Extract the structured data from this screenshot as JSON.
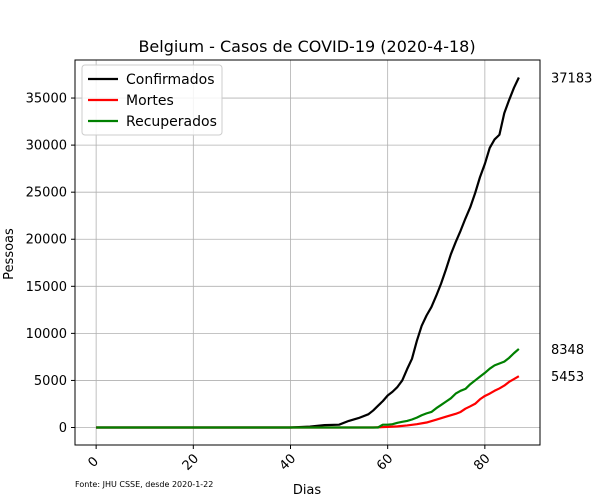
{
  "chart_data": {
    "type": "line",
    "title": "Belgium - Casos de COVID-19 (2020-4-18)",
    "xlabel": "Dias",
    "ylabel": "Pessoas",
    "xlim": [
      -4.35,
      91.35
    ],
    "ylim": [
      -1859,
      39042
    ],
    "xticks": [
      0,
      20,
      40,
      60,
      80
    ],
    "yticks": [
      0,
      5000,
      10000,
      15000,
      20000,
      25000,
      30000,
      35000
    ],
    "grid": true,
    "legend_position": "top-left",
    "source_note": "Fonte: JHU CSSE, desde 2020-1-22",
    "series": [
      {
        "name": "Confirmados",
        "color": "#000000",
        "end_label": "37183",
        "points": [
          [
            0,
            0
          ],
          [
            40,
            0
          ],
          [
            44,
            100
          ],
          [
            47,
            250
          ],
          [
            50,
            300
          ],
          [
            52,
            700
          ],
          [
            54,
            1000
          ],
          [
            56,
            1400
          ],
          [
            57,
            1800
          ],
          [
            58,
            2300
          ],
          [
            59,
            2800
          ],
          [
            60,
            3400
          ],
          [
            61,
            3800
          ],
          [
            62,
            4300
          ],
          [
            63,
            5000
          ],
          [
            64,
            6200
          ],
          [
            65,
            7300
          ],
          [
            66,
            9200
          ],
          [
            67,
            10800
          ],
          [
            68,
            11900
          ],
          [
            69,
            12800
          ],
          [
            70,
            14000
          ],
          [
            71,
            15300
          ],
          [
            72,
            16800
          ],
          [
            73,
            18400
          ],
          [
            74,
            19700
          ],
          [
            75,
            20900
          ],
          [
            76,
            22200
          ],
          [
            77,
            23400
          ],
          [
            78,
            24900
          ],
          [
            79,
            26600
          ],
          [
            80,
            28000
          ],
          [
            81,
            29700
          ],
          [
            82,
            30600
          ],
          [
            83,
            31100
          ],
          [
            84,
            33400
          ],
          [
            85,
            34800
          ],
          [
            86,
            36100
          ],
          [
            87,
            37183
          ]
        ]
      },
      {
        "name": "Mortes",
        "color": "#ff0000",
        "end_label": "5453",
        "points": [
          [
            0,
            0
          ],
          [
            57,
            0
          ],
          [
            60,
            70
          ],
          [
            62,
            120
          ],
          [
            64,
            220
          ],
          [
            66,
            350
          ],
          [
            68,
            530
          ],
          [
            70,
            830
          ],
          [
            72,
            1150
          ],
          [
            74,
            1450
          ],
          [
            75,
            1650
          ],
          [
            76,
            2000
          ],
          [
            77,
            2250
          ],
          [
            78,
            2520
          ],
          [
            79,
            3000
          ],
          [
            80,
            3350
          ],
          [
            81,
            3600
          ],
          [
            82,
            3900
          ],
          [
            83,
            4150
          ],
          [
            84,
            4450
          ],
          [
            85,
            4850
          ],
          [
            86,
            5150
          ],
          [
            87,
            5453
          ]
        ]
      },
      {
        "name": "Recuperados",
        "color": "#008000",
        "end_label": "8348",
        "points": [
          [
            0,
            0
          ],
          [
            58,
            0
          ],
          [
            59,
            300
          ],
          [
            60,
            300
          ],
          [
            61,
            350
          ],
          [
            62,
            500
          ],
          [
            63,
            600
          ],
          [
            64,
            700
          ],
          [
            65,
            850
          ],
          [
            66,
            1050
          ],
          [
            67,
            1300
          ],
          [
            68,
            1500
          ],
          [
            69,
            1650
          ],
          [
            70,
            2050
          ],
          [
            71,
            2400
          ],
          [
            72,
            2750
          ],
          [
            73,
            3100
          ],
          [
            74,
            3600
          ],
          [
            75,
            3900
          ],
          [
            76,
            4100
          ],
          [
            77,
            4600
          ],
          [
            78,
            5000
          ],
          [
            79,
            5400
          ],
          [
            80,
            5800
          ],
          [
            81,
            6250
          ],
          [
            82,
            6600
          ],
          [
            83,
            6800
          ],
          [
            84,
            7000
          ],
          [
            85,
            7400
          ],
          [
            86,
            7900
          ],
          [
            87,
            8348
          ]
        ]
      }
    ]
  }
}
